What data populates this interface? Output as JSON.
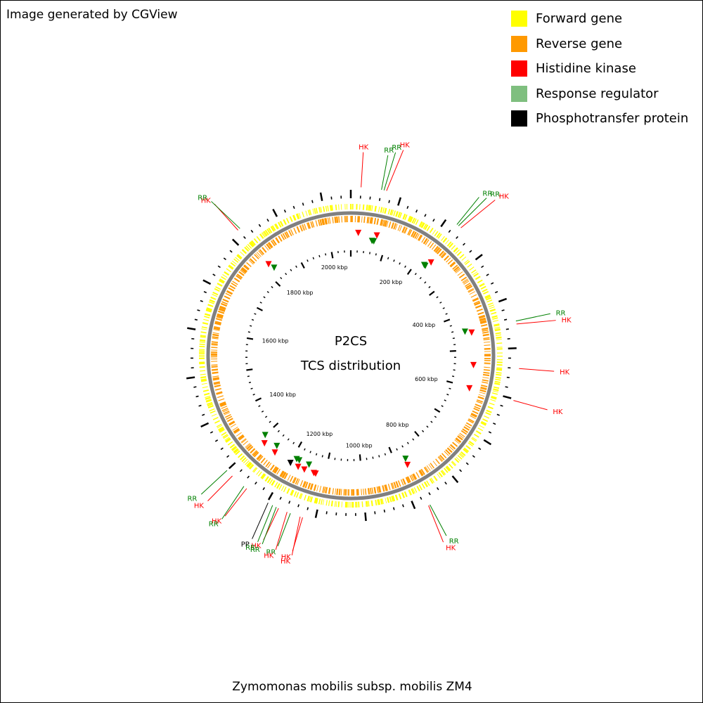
{
  "credit": "Image generated by CGView",
  "organism": "Zymomonas mobilis subsp. mobilis ZM4",
  "center": {
    "title": "P2CS",
    "subtitle": "TCS distribution"
  },
  "genome_length_kbp": 2060,
  "colors": {
    "forward_gene": "#ffff00",
    "reverse_gene": "#ff9900",
    "histidine_kinase": "#ff0000",
    "response_regulator": "#7fbf7f",
    "phosphotransfer_protein": "#000000",
    "backbone": "#808080"
  },
  "legend": [
    {
      "label": "Forward gene",
      "color": "#ffff00"
    },
    {
      "label": "Reverse gene",
      "color": "#ff9900"
    },
    {
      "label": "Histidine kinase",
      "color": "#ff0000"
    },
    {
      "label": "Response regulator",
      "color": "#7fbf7f"
    },
    {
      "label": "Phosphotransfer protein",
      "color": "#000000"
    }
  ],
  "kbp_ticks": [
    {
      "label": "200 kbp",
      "kbp": 200
    },
    {
      "label": "400 kbp",
      "kbp": 400
    },
    {
      "label": "600 kbp",
      "kbp": 600
    },
    {
      "label": "800 kbp",
      "kbp": 800
    },
    {
      "label": "1000 kbp",
      "kbp": 1000
    },
    {
      "label": "1200 kbp",
      "kbp": 1200
    },
    {
      "label": "1400 kbp",
      "kbp": 1400
    },
    {
      "label": "1600 kbp",
      "kbp": 1600
    },
    {
      "label": "1800 kbp",
      "kbp": 1800
    },
    {
      "label": "2000 kbp",
      "kbp": 2000
    }
  ],
  "tcs_features": [
    {
      "label": "HK",
      "type": "HK",
      "kbp": 20
    },
    {
      "label": "RR",
      "type": "RR",
      "kbp": 60
    },
    {
      "label": "RR",
      "type": "RR",
      "kbp": 65
    },
    {
      "label": "HK",
      "type": "HK",
      "kbp": 70
    },
    {
      "label": "RR",
      "type": "RR",
      "kbp": 223
    },
    {
      "label": "RR",
      "type": "RR",
      "kbp": 227
    },
    {
      "label": "HK",
      "type": "HK",
      "kbp": 233
    },
    {
      "label": "RR",
      "type": "RR",
      "kbp": 447
    },
    {
      "label": "HK",
      "type": "HK",
      "kbp": 453
    },
    {
      "label": "HK",
      "type": "HK",
      "kbp": 540
    },
    {
      "label": "HK",
      "type": "HK",
      "kbp": 603
    },
    {
      "label": "RR",
      "type": "RR",
      "kbp": 870
    },
    {
      "label": "HK",
      "type": "HK",
      "kbp": 873
    },
    {
      "label": "HK",
      "type": "HK",
      "kbp": 1125
    },
    {
      "label": "HK",
      "type": "HK",
      "kbp": 1130
    },
    {
      "label": "RR",
      "type": "RR",
      "kbp": 1150
    },
    {
      "label": "HK",
      "type": "HK",
      "kbp": 1157
    },
    {
      "label": "HK",
      "type": "HK",
      "kbp": 1175
    },
    {
      "label": "RR",
      "type": "RR",
      "kbp": 1180
    },
    {
      "label": "RR",
      "type": "RR",
      "kbp": 1188
    },
    {
      "label": "PP",
      "type": "PP",
      "kbp": 1198
    },
    {
      "label": "HK",
      "type": "HK",
      "kbp": 1248
    },
    {
      "label": "RR",
      "type": "RR",
      "kbp": 1255
    },
    {
      "label": "HK",
      "type": "HK",
      "kbp": 1285
    },
    {
      "label": "RR",
      "type": "RR",
      "kbp": 1300
    },
    {
      "label": "HK",
      "type": "HK",
      "kbp": 1820
    },
    {
      "label": "RR",
      "type": "RR",
      "kbp": 1825
    }
  ]
}
